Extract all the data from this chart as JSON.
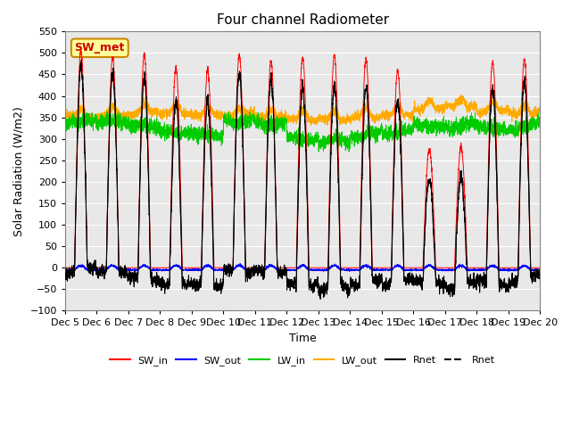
{
  "title": "Four channel Radiometer",
  "xlabel": "Time",
  "ylabel": "Solar Radiation (W/m2)",
  "ylim": [
    -100,
    550
  ],
  "yticks": [
    -100,
    -50,
    0,
    50,
    100,
    150,
    200,
    250,
    300,
    350,
    400,
    450,
    500,
    550
  ],
  "annotation_text": "SW_met",
  "annotation_color": "#cc0000",
  "annotation_bg": "#ffff99",
  "annotation_border": "#cc8800",
  "colors": {
    "SW_in": "#ff0000",
    "SW_out": "#0000ff",
    "LW_in": "#00cc00",
    "LW_out": "#ffaa00",
    "Rnet1": "#000000",
    "Rnet2": "#000000"
  },
  "legend_labels": [
    "SW_in",
    "SW_out",
    "LW_in",
    "LW_out",
    "Rnet",
    "Rnet"
  ],
  "bg_color": "#e8e8e8"
}
